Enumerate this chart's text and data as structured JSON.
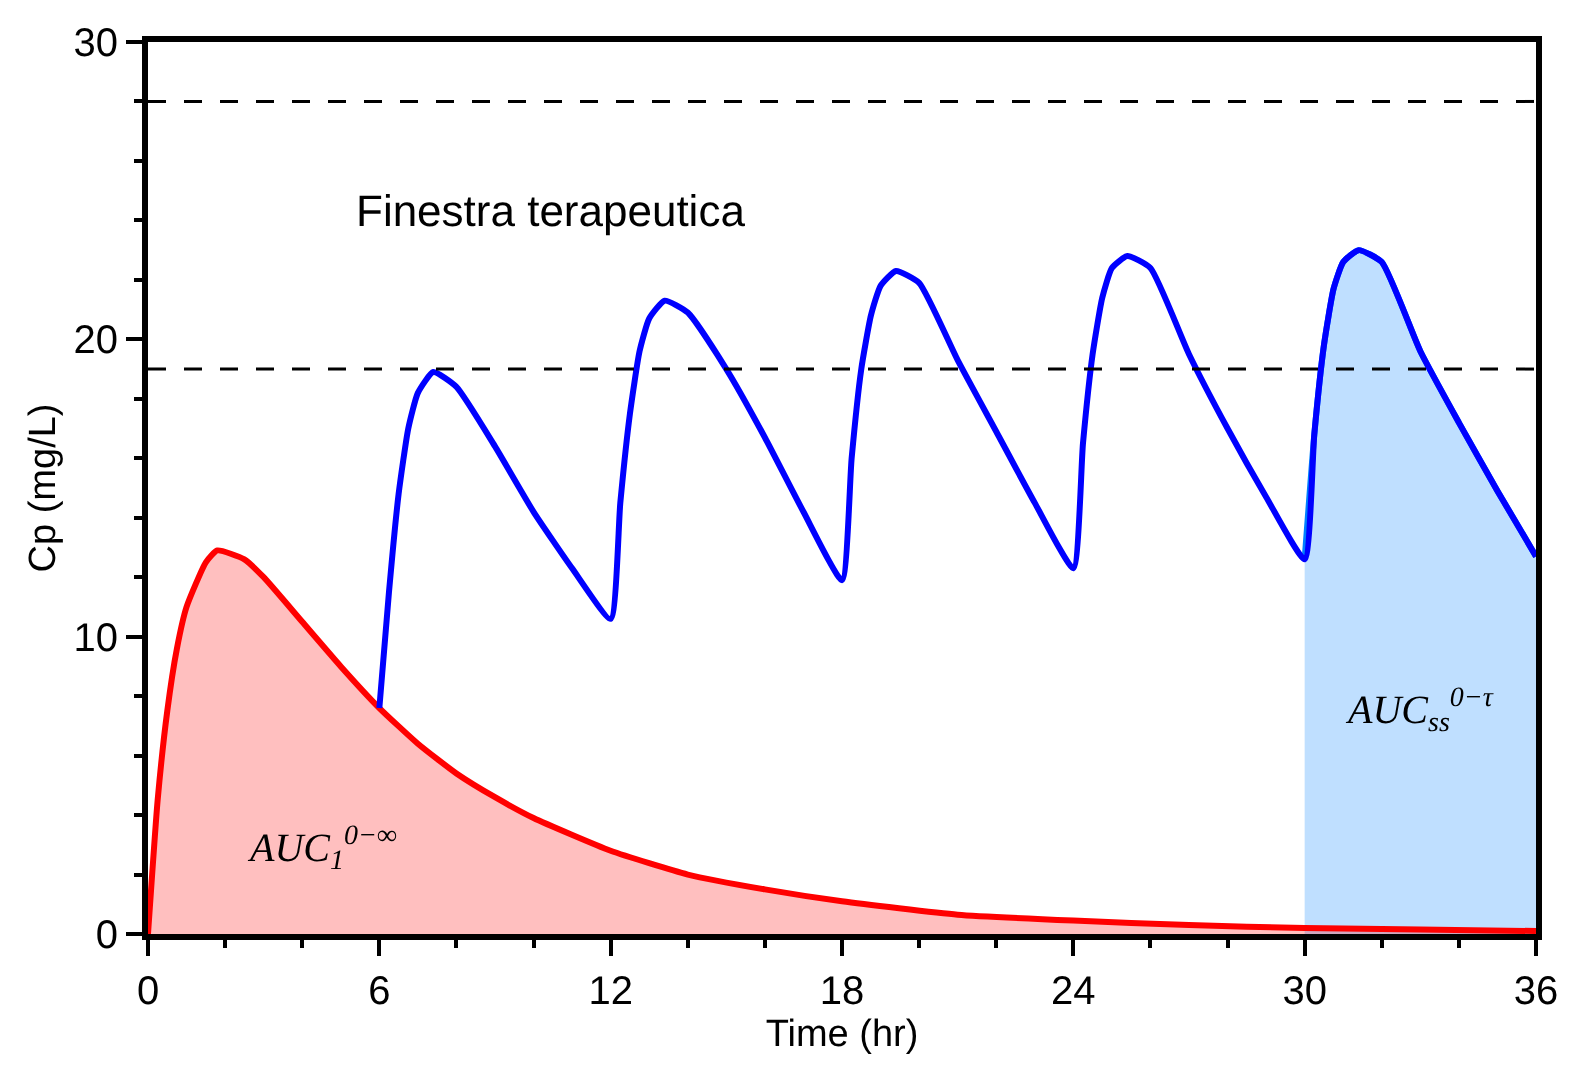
{
  "chart_data": {
    "type": "line",
    "xlabel": "Time (hr)",
    "ylabel": "Cp (mg/L)",
    "xlim": [
      0,
      36
    ],
    "xticks": [
      0,
      {
        "value": 2,
        "label": null
      },
      {
        "value": 4,
        "label": null
      },
      6,
      {
        "value": 8,
        "label": null
      },
      {
        "value": 10,
        "label": null
      },
      12,
      {
        "value": 14,
        "label": null
      },
      {
        "value": 16,
        "label": null
      },
      18,
      {
        "value": 20,
        "label": null
      },
      {
        "value": 22,
        "label": null
      },
      24,
      {
        "value": 26,
        "label": null
      },
      {
        "value": 28,
        "label": null
      },
      30,
      {
        "value": 32,
        "label": null
      },
      {
        "value": 34,
        "label": null
      },
      36
    ],
    "ylim": [
      0,
      30
    ],
    "yticks": [
      0,
      {
        "value": 2,
        "label": null
      },
      {
        "value": 4,
        "label": null
      },
      {
        "value": 6,
        "label": null
      },
      {
        "value": 8,
        "label": null
      },
      10,
      {
        "value": 12,
        "label": null
      },
      {
        "value": 14,
        "label": null
      },
      {
        "value": 16,
        "label": null
      },
      {
        "value": 18,
        "label": null
      },
      20,
      {
        "value": 22,
        "label": null
      },
      {
        "value": 24,
        "label": null
      },
      {
        "value": 26,
        "label": null
      },
      {
        "value": 28,
        "label": null
      },
      30
    ],
    "grid": false,
    "marker": "none",
    "line_style": "solid",
    "series": [
      {
        "type": "area",
        "color": "#0080ff",
        "x": [
          30,
          30.25,
          30.5,
          30.75,
          31,
          31.4,
          32,
          33,
          34,
          35,
          36
        ],
        "values": [
          12.6,
          16.8,
          19.8,
          21.7,
          22.6,
          23.0,
          22.6,
          19.6,
          17.2,
          14.9,
          12.7
        ]
      },
      {
        "type": "area",
        "color": "#ff0000",
        "x": [
          0,
          0.25,
          0.5,
          0.75,
          1,
          1.5,
          1.8,
          2.5,
          3,
          4,
          5,
          6,
          7,
          8,
          9,
          10,
          12,
          14,
          16,
          18,
          21,
          24,
          27,
          30,
          33,
          36
        ],
        "values": [
          0,
          4.5,
          7.5,
          9.6,
          11.0,
          12.5,
          12.9,
          12.6,
          12.0,
          10.5,
          9.0,
          7.6,
          6.4,
          5.4,
          4.6,
          3.9,
          2.8,
          2.0,
          1.5,
          1.1,
          0.65,
          0.45,
          0.3,
          0.2,
          0.15,
          0.1
        ]
      },
      {
        "color": "#0000ff",
        "x": [
          6,
          6.25,
          6.5,
          6.75,
          7,
          7.4,
          8,
          9,
          10,
          11,
          12,
          12.25,
          12.5,
          12.75,
          13,
          13.4,
          14,
          15,
          16,
          17,
          18,
          18.25,
          18.5,
          18.75,
          19,
          19.4,
          20,
          21,
          22,
          23,
          24,
          24.25,
          24.5,
          24.75,
          25,
          25.4,
          26,
          27,
          28,
          29,
          30,
          30.25,
          30.5,
          30.75,
          31,
          31.4,
          32,
          33,
          34,
          35,
          36
        ],
        "values": [
          7.6,
          11.5,
          14.8,
          17.0,
          18.2,
          18.9,
          18.4,
          16.4,
          14.2,
          12.3,
          10.6,
          14.5,
          17.5,
          19.6,
          20.7,
          21.3,
          20.9,
          19.0,
          16.7,
          14.2,
          11.9,
          16.0,
          19.0,
          20.8,
          21.8,
          22.3,
          21.9,
          19.3,
          16.9,
          14.5,
          12.3,
          16.5,
          19.5,
          21.4,
          22.4,
          22.8,
          22.4,
          19.5,
          17.0,
          14.7,
          12.6,
          16.8,
          19.8,
          21.7,
          22.6,
          23.0,
          22.6,
          19.6,
          17.2,
          14.9,
          12.7
        ]
      }
    ],
    "ref_lines": [
      {
        "axis": "y",
        "value": 28,
        "color": "#000000",
        "line_style": "dashed"
      },
      {
        "axis": "y",
        "value": 19,
        "color": "#000000",
        "line_style": "dashed"
      }
    ],
    "annotations": [
      "Finestra terapeutica",
      "AUC$_{1}$$^{0−∞}$",
      "AUC$_{ss}$$^{0−τ}$"
    ]
  }
}
